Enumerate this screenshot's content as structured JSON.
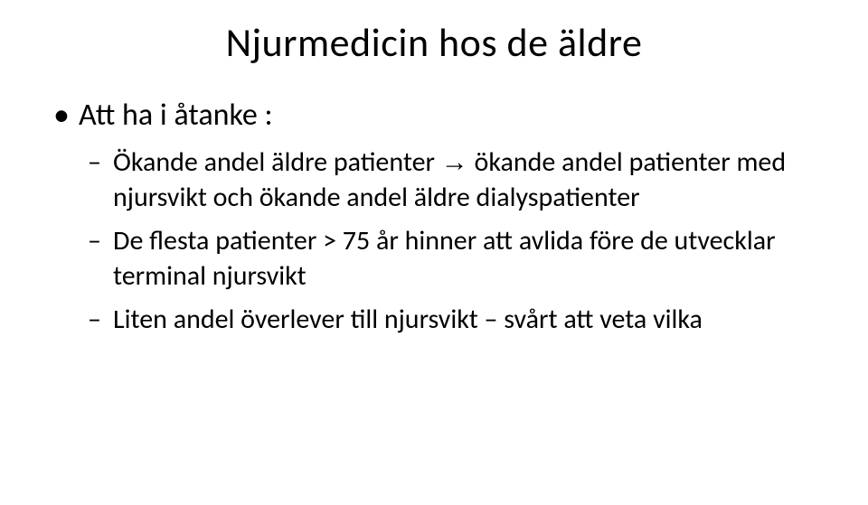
{
  "slide": {
    "title": "Njurmedicin hos de äldre",
    "title_fontsize": 44,
    "background_color": "#ffffff",
    "text_color": "#000000",
    "bullet_level_1": {
      "text": "Att ha i åtanke :",
      "fontsize": 34
    },
    "bullet_level_2_items": [
      {
        "text_before_arrow": "Ökande andel äldre patienter ",
        "arrow": "→",
        "text_after_arrow": " ökande andel patienter med njursvikt och ökande andel äldre dialyspatienter"
      },
      {
        "text": "De flesta patienter > 75 år hinner att avlida före de utvecklar terminal njursvikt"
      },
      {
        "text": "Liten andel överlever till njursvikt – svårt att veta vilka"
      }
    ],
    "sub_fontsize": 30
  }
}
